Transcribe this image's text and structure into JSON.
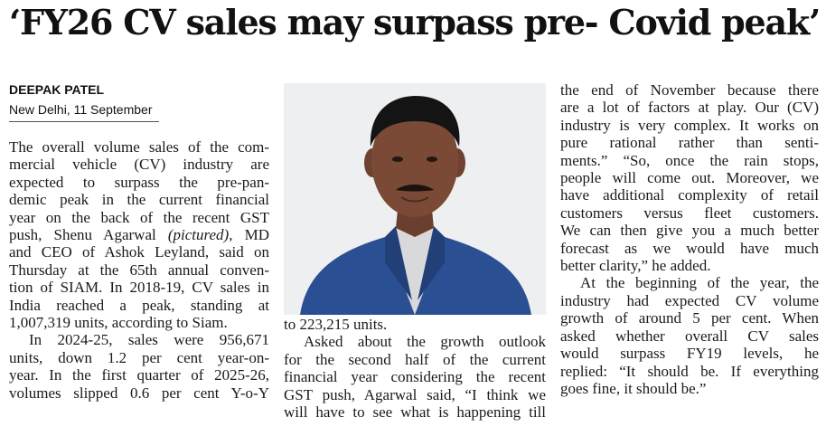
{
  "article": {
    "headline": "‘FY26 CV sales may surpass pre- Covid peak’",
    "author": "DEEPAK PATEL",
    "dateline": "New Delhi, 11 September",
    "photo_alt": "Shenu Agarwal, MD and CEO of Ashok Leyland"
  },
  "columns": [
    {
      "lines": [
        {
          "text": "The overall volume sales of the com-"
        },
        {
          "text": "mercial vehicle (CV) industry are"
        },
        {
          "text": "expected to surpass the pre-pan-"
        },
        {
          "text": "demic peak in the current financial"
        },
        {
          "text": "year on the back of the recent GST"
        },
        {
          "text": "push, Shenu Agarwal (pictured), MD"
        },
        {
          "text": "and CEO of Ashok Leyland, said on"
        },
        {
          "text": "Thursday at the 65th annual conven-"
        },
        {
          "text": "tion of SIAM. In 2018-19, CV sales in"
        },
        {
          "text": "India reached a peak, standing at"
        },
        {
          "text": "1,007,319 units, according to Siam.",
          "last": true
        },
        {
          "text": "In 2024-25, sales were 956,671",
          "indent": true
        },
        {
          "text": "units, down 1.2 per cent year-on-"
        },
        {
          "text": "year. In the first quarter of 2025-26,"
        },
        {
          "text": "volumes slipped 0.6 per cent Y-o-Y"
        }
      ]
    },
    {
      "lines": [
        {
          "text": "to 223,215 units.",
          "last": true
        },
        {
          "text": "Asked about the growth outlook",
          "indent": true
        },
        {
          "text": "for the second half of the current"
        },
        {
          "text": "financial year considering the recent"
        },
        {
          "text": "GST push, Agarwal said, “I think we"
        },
        {
          "text": "will have to see what is happening till"
        }
      ]
    },
    {
      "lines": [
        {
          "text": "the end of November because there"
        },
        {
          "text": "are a lot of factors at play. Our (CV)"
        },
        {
          "text": "industry is very complex. It works on"
        },
        {
          "text": "pure rational rather than senti-"
        },
        {
          "text": "ments.” “So, once the rain stops,"
        },
        {
          "text": "people will come out. Moreover, we"
        },
        {
          "text": "have additional complexity of retail"
        },
        {
          "text": "customers versus fleet customers."
        },
        {
          "text": "We can then give you a much better"
        },
        {
          "text": "forecast as we would have much"
        },
        {
          "text": "better clarity,” he added.",
          "last": true
        },
        {
          "text": "At the beginning of the year, the",
          "indent": true
        },
        {
          "text": "industry had expected CV volume"
        },
        {
          "text": "growth of around 5 per cent. When"
        },
        {
          "text": "asked whether overall CV sales"
        },
        {
          "text": "would surpass FY19 levels, he"
        },
        {
          "text": "replied: “It should be. If everything"
        },
        {
          "text": "goes fine, it should be.”",
          "last": true
        }
      ]
    }
  ],
  "colors": {
    "text": "#1a1a1a",
    "suit": "#2b4f93",
    "shirt": "#d9d9dc",
    "skin": "#7a4a36",
    "hair": "#141414",
    "photo_bg": "#eeeff1"
  }
}
